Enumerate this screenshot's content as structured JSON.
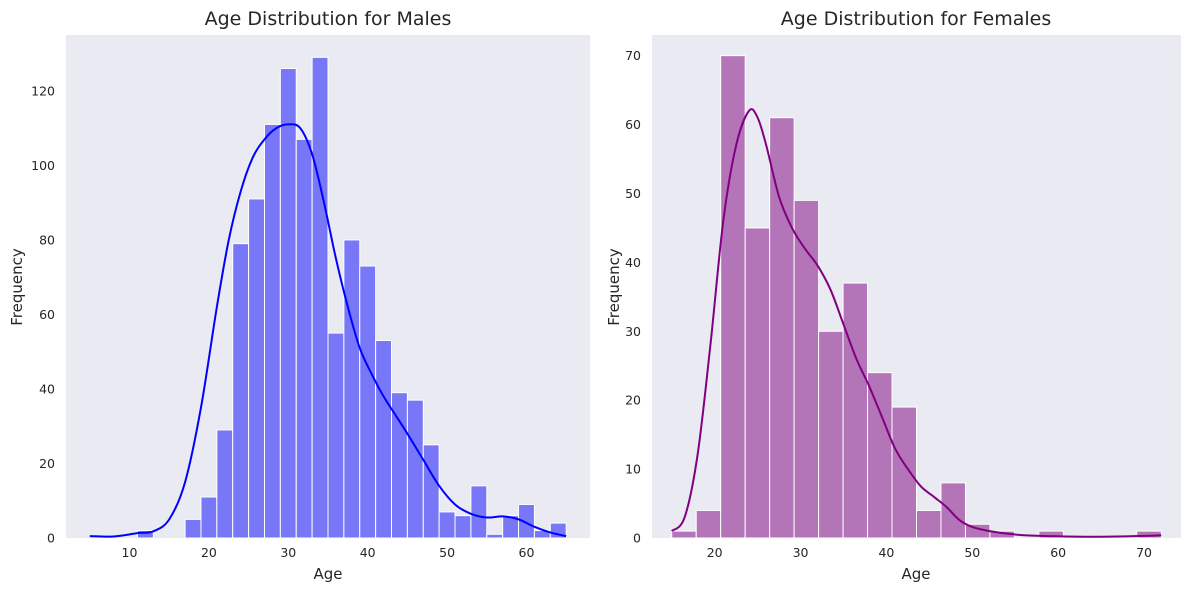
{
  "chart_data": [
    {
      "type": "bar",
      "title": "Age Distribution for Males",
      "xlabel": "Age",
      "ylabel": "Frequency",
      "xlim": [
        2,
        68
      ],
      "ylim": [
        0,
        135
      ],
      "xticks": [
        10,
        20,
        30,
        40,
        50,
        60
      ],
      "yticks": [
        0,
        20,
        40,
        60,
        80,
        100,
        120
      ],
      "grid": false,
      "colors": {
        "bar": "#7777f8",
        "bar_edge": "#ffffff",
        "kde": "#0000ff",
        "background": "#eaeaf2"
      },
      "bins": [
        {
          "start": 5.0,
          "end": 7.0,
          "count": 0
        },
        {
          "start": 7.0,
          "end": 9.0,
          "count": 0
        },
        {
          "start": 9.0,
          "end": 11.0,
          "count": 0
        },
        {
          "start": 11.0,
          "end": 13.0,
          "count": 2
        },
        {
          "start": 13.0,
          "end": 15.0,
          "count": 0
        },
        {
          "start": 15.0,
          "end": 17.0,
          "count": 0
        },
        {
          "start": 17.0,
          "end": 19.0,
          "count": 5
        },
        {
          "start": 19.0,
          "end": 21.0,
          "count": 11
        },
        {
          "start": 21.0,
          "end": 23.0,
          "count": 29
        },
        {
          "start": 23.0,
          "end": 25.0,
          "count": 79
        },
        {
          "start": 25.0,
          "end": 27.0,
          "count": 91
        },
        {
          "start": 27.0,
          "end": 29.0,
          "count": 111
        },
        {
          "start": 29.0,
          "end": 31.0,
          "count": 126
        },
        {
          "start": 31.0,
          "end": 33.0,
          "count": 107
        },
        {
          "start": 33.0,
          "end": 35.0,
          "count": 129
        },
        {
          "start": 35.0,
          "end": 37.0,
          "count": 55
        },
        {
          "start": 37.0,
          "end": 39.0,
          "count": 80
        },
        {
          "start": 39.0,
          "end": 41.0,
          "count": 73
        },
        {
          "start": 41.0,
          "end": 43.0,
          "count": 53
        },
        {
          "start": 43.0,
          "end": 45.0,
          "count": 39
        },
        {
          "start": 45.0,
          "end": 47.0,
          "count": 37
        },
        {
          "start": 47.0,
          "end": 49.0,
          "count": 25
        },
        {
          "start": 49.0,
          "end": 51.0,
          "count": 7
        },
        {
          "start": 51.0,
          "end": 53.0,
          "count": 6
        },
        {
          "start": 53.0,
          "end": 55.0,
          "count": 14
        },
        {
          "start": 55.0,
          "end": 57.0,
          "count": 1
        },
        {
          "start": 57.0,
          "end": 59.0,
          "count": 6
        },
        {
          "start": 59.0,
          "end": 61.0,
          "count": 9
        },
        {
          "start": 61.0,
          "end": 63.0,
          "count": 2
        },
        {
          "start": 63.0,
          "end": 65.0,
          "count": 4
        }
      ],
      "kde": {
        "x": [
          5,
          8,
          11,
          13,
          15,
          17,
          19,
          21,
          22.5,
          24,
          25.5,
          27,
          28.5,
          30,
          31.5,
          33,
          34.5,
          36,
          37.5,
          39,
          40.5,
          42,
          43.5,
          45,
          47,
          49,
          51,
          53,
          55,
          57,
          59,
          61,
          63,
          65
        ],
        "y": [
          0.5,
          0.4,
          1.3,
          1.8,
          5,
          15,
          35,
          62,
          80,
          93,
          102,
          107,
          110,
          111,
          110,
          103,
          90,
          75,
          62,
          51,
          44,
          38,
          33,
          28,
          21,
          14,
          9,
          6.5,
          5.5,
          5.8,
          5,
          3,
          1.5,
          0.5
        ]
      }
    },
    {
      "type": "bar",
      "title": "Age Distribution for Females",
      "xlabel": "Age",
      "ylabel": "Frequency",
      "xlim": [
        12.7,
        74.3
      ],
      "ylim": [
        0,
        73
      ],
      "xticks": [
        20,
        30,
        40,
        50,
        60,
        70
      ],
      "yticks": [
        0,
        10,
        20,
        30,
        40,
        50,
        60,
        70
      ],
      "grid": false,
      "colors": {
        "bar": "#b374b8",
        "bar_edge": "#ffffff",
        "kde": "#800080",
        "background": "#eaeaf2"
      },
      "bins": [
        {
          "start": 15.0,
          "end": 17.85,
          "count": 1
        },
        {
          "start": 17.85,
          "end": 20.7,
          "count": 4
        },
        {
          "start": 20.7,
          "end": 23.55,
          "count": 70
        },
        {
          "start": 23.55,
          "end": 26.4,
          "count": 45
        },
        {
          "start": 26.4,
          "end": 29.25,
          "count": 61
        },
        {
          "start": 29.25,
          "end": 32.1,
          "count": 49
        },
        {
          "start": 32.1,
          "end": 34.95,
          "count": 30
        },
        {
          "start": 34.95,
          "end": 37.8,
          "count": 37
        },
        {
          "start": 37.8,
          "end": 40.65,
          "count": 24
        },
        {
          "start": 40.65,
          "end": 43.5,
          "count": 19
        },
        {
          "start": 43.5,
          "end": 46.35,
          "count": 4
        },
        {
          "start": 46.35,
          "end": 49.2,
          "count": 8
        },
        {
          "start": 49.2,
          "end": 52.05,
          "count": 2
        },
        {
          "start": 52.05,
          "end": 54.9,
          "count": 1
        },
        {
          "start": 54.9,
          "end": 57.75,
          "count": 0
        },
        {
          "start": 57.75,
          "end": 60.6,
          "count": 1
        },
        {
          "start": 60.6,
          "end": 63.45,
          "count": 0
        },
        {
          "start": 63.45,
          "end": 66.3,
          "count": 0
        },
        {
          "start": 66.3,
          "end": 69.15,
          "count": 0
        },
        {
          "start": 69.15,
          "end": 72.0,
          "count": 1
        }
      ],
      "kde": {
        "x": [
          15,
          16.5,
          18,
          19.5,
          21,
          22.5,
          24,
          25,
          26,
          27.5,
          29,
          30.5,
          32,
          33.5,
          35,
          36.5,
          38,
          39.5,
          41,
          42.5,
          44,
          45.5,
          47,
          48.5,
          50,
          52,
          55,
          58,
          62,
          66,
          70,
          72
        ],
        "y": [
          1,
          3,
          12,
          28,
          46,
          57,
          62,
          61,
          57,
          49.5,
          45,
          42,
          39.5,
          36,
          31,
          26,
          22,
          17.5,
          13,
          10,
          7.5,
          6,
          4.5,
          2.6,
          1.6,
          1,
          0.5,
          0.3,
          0.2,
          0.2,
          0.3,
          0.4
        ]
      }
    }
  ]
}
